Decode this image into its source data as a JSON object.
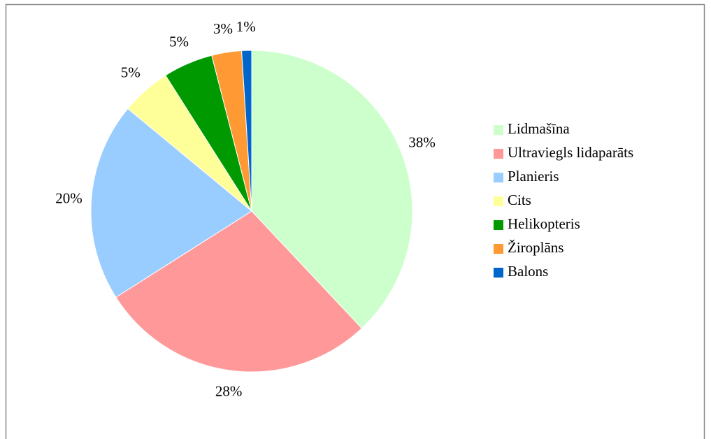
{
  "chart_data": {
    "type": "pie",
    "categories": [
      "Lidmašīna",
      "Ultraviegls lidaparāts",
      "Planieris",
      "Cits",
      "Helikopteris",
      "Žiroplāns",
      "Balons"
    ],
    "values": [
      38,
      28,
      20,
      5,
      5,
      3,
      1
    ],
    "value_labels": [
      "38%",
      "28%",
      "20%",
      "5%",
      "5%",
      "3%",
      "1%"
    ],
    "colors": [
      "#ccffcc",
      "#ff9999",
      "#99ccff",
      "#ffff99",
      "#009900",
      "#ff9933",
      "#0066cc"
    ],
    "legend": "right"
  }
}
